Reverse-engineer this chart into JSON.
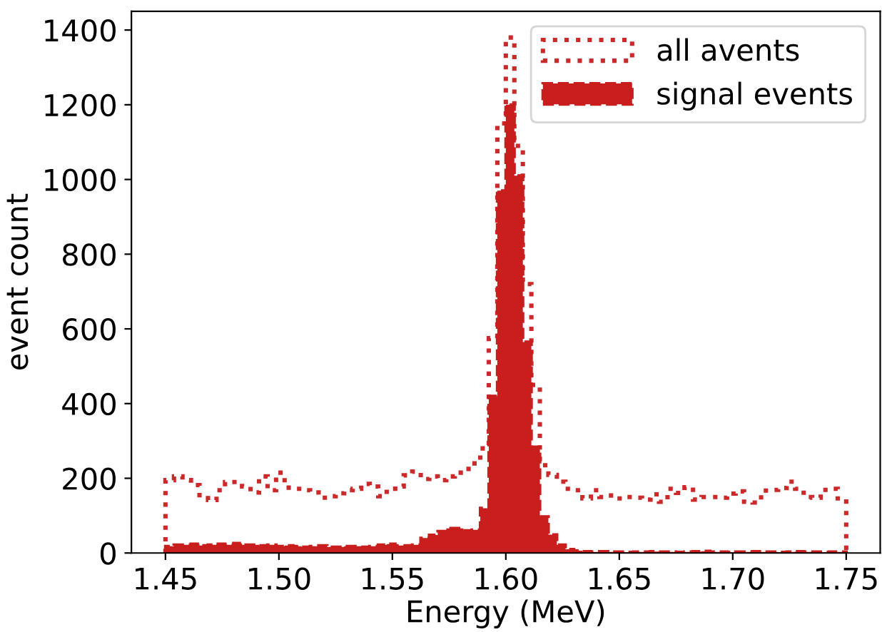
{
  "chart_data": {
    "type": "histogram",
    "xlabel": "Energy (MeV)",
    "ylabel": "event count",
    "bins": [
      1.45,
      1.45375,
      1.4575,
      1.46125,
      1.465,
      1.46875,
      1.4725,
      1.47625,
      1.48,
      1.48375,
      1.4875,
      1.49125,
      1.495,
      1.49875,
      1.5025,
      1.50625,
      1.51,
      1.51375,
      1.5175,
      1.52125,
      1.525,
      1.52875,
      1.5325,
      1.53625,
      1.54,
      1.54375,
      1.5475,
      1.55125,
      1.555,
      1.55875,
      1.5625,
      1.56625,
      1.57,
      1.57375,
      1.5775,
      1.58125,
      1.585,
      1.58875,
      1.5925,
      1.59625,
      1.6,
      1.60375,
      1.6075,
      1.61125,
      1.615,
      1.61875,
      1.6225,
      1.62625,
      1.63,
      1.63375,
      1.6375,
      1.64125,
      1.645,
      1.64875,
      1.6525,
      1.65625,
      1.66,
      1.66375,
      1.6675,
      1.67125,
      1.675,
      1.67875,
      1.6825,
      1.68625,
      1.69,
      1.69375,
      1.6975,
      1.70125,
      1.705,
      1.70875,
      1.7125,
      1.71625,
      1.72,
      1.72375,
      1.7275,
      1.73125,
      1.735,
      1.73875,
      1.7425,
      1.74625,
      1.75
    ],
    "series": [
      {
        "name": "all avents",
        "type": "histogram",
        "line_style": "dotted",
        "color": "#cc2a2a",
        "values": [
          195,
          205,
          195,
          182,
          155,
          142,
          168,
          190,
          190,
          178,
          162,
          205,
          168,
          215,
          175,
          172,
          168,
          162,
          148,
          152,
          160,
          168,
          172,
          185,
          178,
          152,
          172,
          178,
          208,
          218,
          198,
          205,
          195,
          205,
          215,
          225,
          240,
          280,
          575,
          1150,
          1380,
          1090,
          720,
          450,
          235,
          209,
          191,
          172,
          168,
          146,
          168,
          150,
          154,
          146,
          150,
          148,
          143,
          157,
          137,
          172,
          161,
          176,
          143,
          150,
          150,
          148,
          159,
          165,
          137,
          135,
          167,
          169,
          174,
          191,
          172,
          150,
          148,
          169,
          172,
          146
        ]
      },
      {
        "name": "signal events",
        "type": "histogram",
        "line_style": "dashed",
        "color": "#c81e1e",
        "values": [
          18,
          22,
          22,
          24,
          20,
          22,
          24,
          22,
          26,
          22,
          22,
          20,
          22,
          18,
          20,
          18,
          16,
          18,
          20,
          16,
          16,
          18,
          18,
          16,
          18,
          22,
          24,
          20,
          20,
          22,
          40,
          48,
          58,
          66,
          66,
          60,
          62,
          120,
          420,
          970,
          1200,
          1010,
          565,
          284,
          97,
          49,
          22,
          10,
          6,
          4,
          3,
          4,
          3,
          3,
          2,
          3,
          3,
          4,
          3,
          3,
          2,
          3,
          4,
          5,
          3,
          3,
          2,
          3,
          3,
          4,
          3,
          3,
          2,
          3,
          4,
          3,
          3,
          2,
          3,
          3
        ]
      }
    ],
    "xlim": [
      1.435,
      1.765
    ],
    "xticks": [
      {
        "value": 1.45,
        "label": "1.45"
      },
      {
        "value": 1.5,
        "label": "1.50"
      },
      {
        "value": 1.55,
        "label": "1.55"
      },
      {
        "value": 1.6,
        "label": "1.60"
      },
      {
        "value": 1.65,
        "label": "1.65"
      },
      {
        "value": 1.7,
        "label": "1.70"
      },
      {
        "value": 1.75,
        "label": "1.75"
      }
    ],
    "ylim": [
      0,
      1450
    ],
    "yticks": [
      0,
      200,
      400,
      600,
      800,
      1000,
      1200,
      1400
    ],
    "legend": "upper right",
    "grid": false
  }
}
